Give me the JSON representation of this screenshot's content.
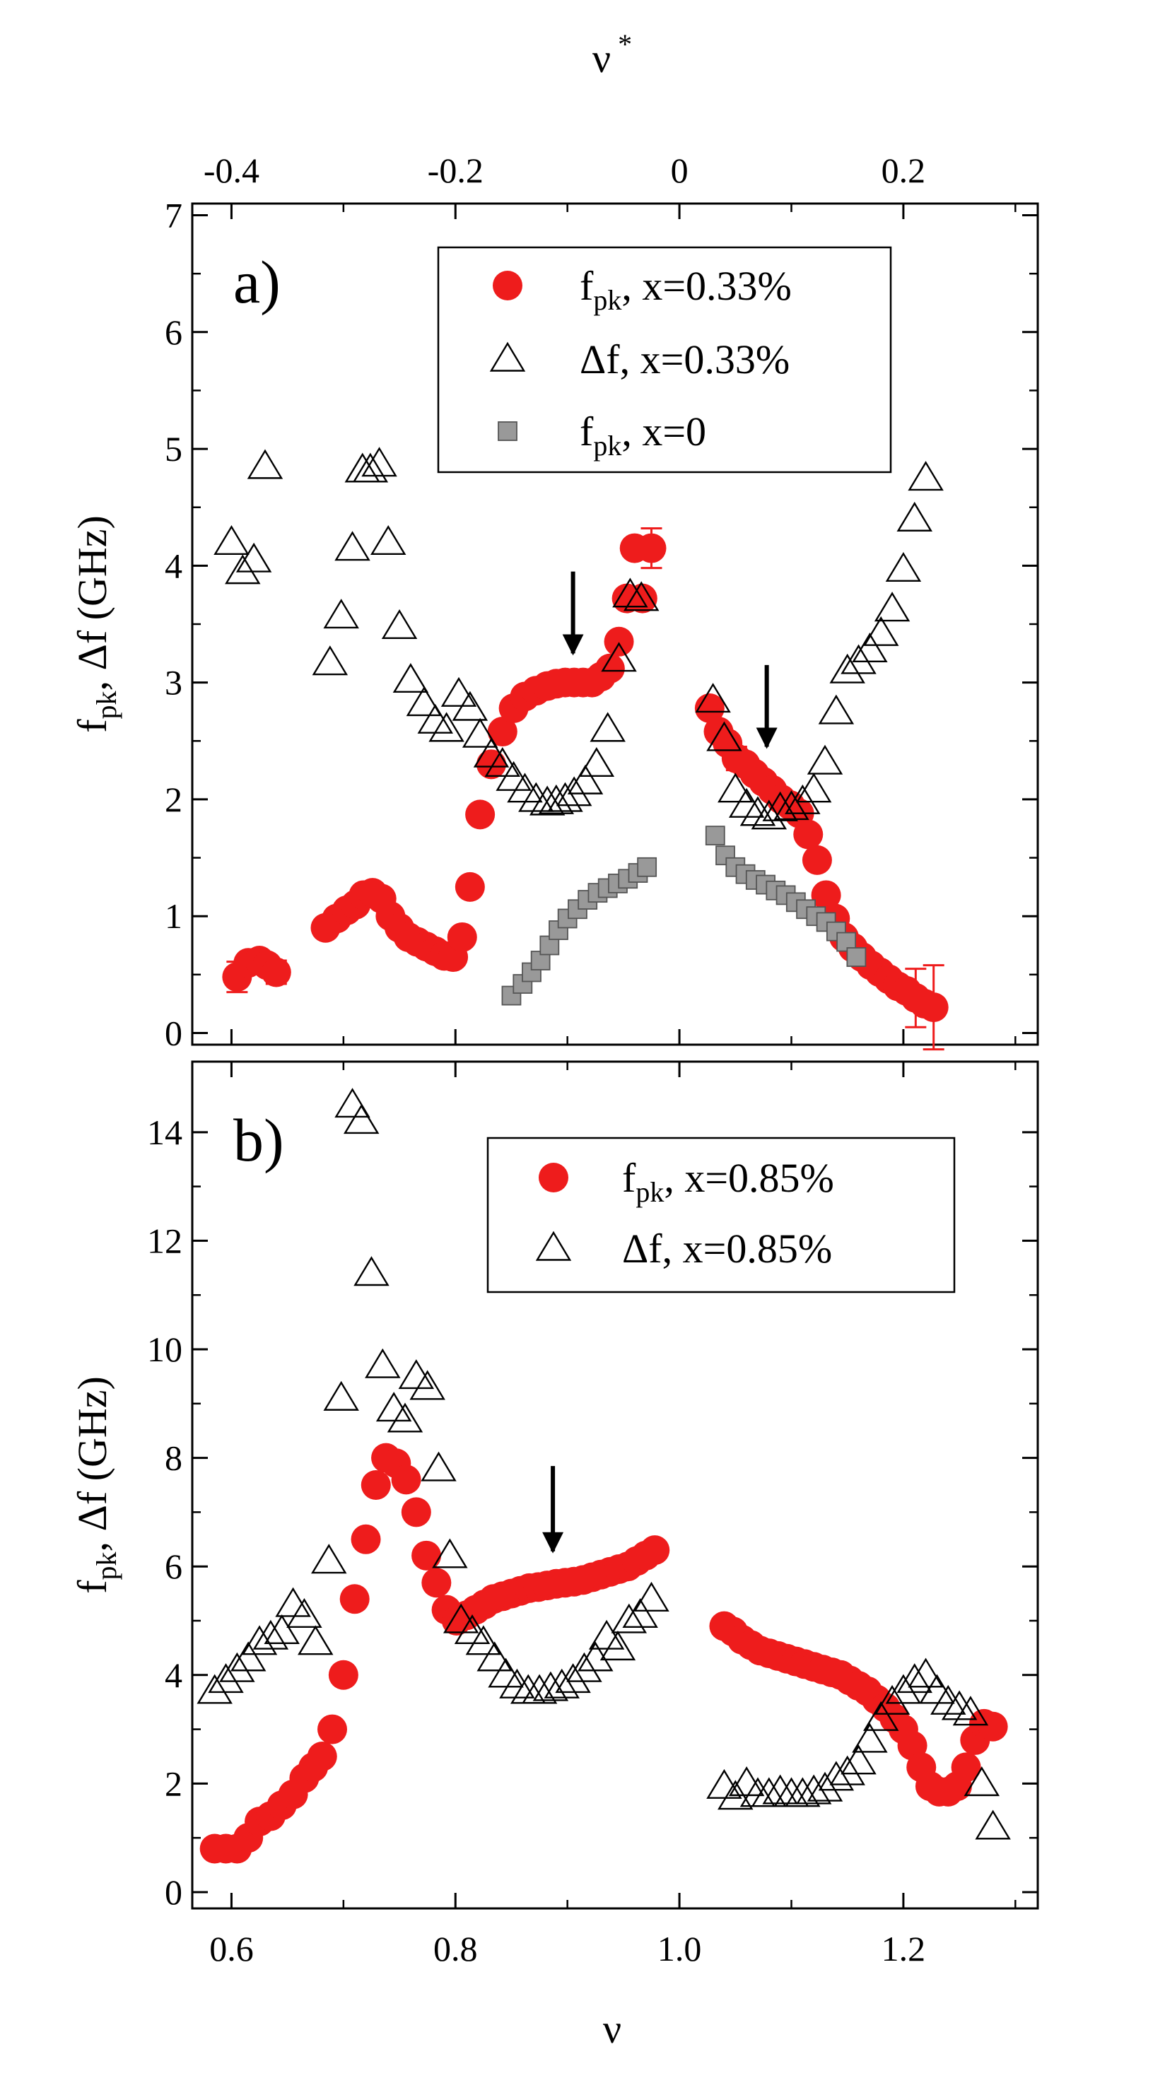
{
  "chart_data": [
    {
      "panel": "a)",
      "type": "scatter",
      "xlabel": "ν",
      "ylabel": "f_pk, Δf (GHz)",
      "ylabel_parts": {
        "f": "f",
        "sub": "pk",
        "rest": ",  Δf  (GHz)"
      },
      "top_axis": {
        "label": "ν*",
        "label_parts": {
          "nu": "ν",
          "sup": "*"
        },
        "ticks": [
          -0.4,
          -0.2,
          0,
          0.2
        ],
        "tick_labels": [
          "-0.4",
          "-0.2",
          "0",
          "0.2"
        ]
      },
      "xlim": [
        0.565,
        1.32
      ],
      "ylim": [
        -0.1,
        7.1
      ],
      "yticks": [
        0,
        1,
        2,
        3,
        4,
        5,
        6,
        7
      ],
      "ytick_labels": [
        "0",
        "1",
        "2",
        "3",
        "4",
        "5",
        "6",
        "7"
      ],
      "arrows": [
        {
          "x": 0.905,
          "y_tip": 3.25,
          "y_tail": 3.95
        },
        {
          "x": 1.078,
          "y_tip": 2.45,
          "y_tail": 3.15
        }
      ],
      "legend": {
        "position": "top-right",
        "entries": [
          {
            "marker": "circle",
            "f": "f",
            "sub": "pk",
            "rest": ",  x=0.33%"
          },
          {
            "marker": "triangle",
            "f": "Δf",
            "sub": "",
            "rest": ",  x=0.33%"
          },
          {
            "marker": "square",
            "f": "f",
            "sub": "pk",
            "rest": ", x=0"
          }
        ]
      },
      "series": [
        {
          "name": "f_pk, x=0.33%",
          "marker": "circle",
          "color": "#ee1c1c",
          "x": [
            0.605,
            0.615,
            0.625,
            0.632,
            0.64,
            0.684,
            0.694,
            0.703,
            0.711,
            0.718,
            0.726,
            0.734,
            0.742,
            0.75,
            0.758,
            0.766,
            0.774,
            0.782,
            0.79,
            0.798,
            0.806,
            0.813,
            0.822,
            0.832,
            0.842,
            0.852,
            0.862,
            0.872,
            0.882,
            0.89,
            0.898,
            0.906,
            0.914,
            0.922,
            0.93,
            0.938,
            0.946,
            0.953,
            0.96,
            0.967,
            0.975,
            1.027,
            1.035,
            1.043,
            1.051,
            1.059,
            1.067,
            1.075,
            1.083,
            1.091,
            1.099,
            1.107,
            1.115,
            1.123,
            1.131,
            1.139,
            1.147,
            1.155,
            1.163,
            1.171,
            1.179,
            1.187,
            1.195,
            1.203,
            1.211,
            1.219,
            1.227
          ],
          "y": [
            0.48,
            0.6,
            0.62,
            0.58,
            0.52,
            0.9,
            0.98,
            1.05,
            1.1,
            1.18,
            1.2,
            1.15,
            1.0,
            0.9,
            0.82,
            0.78,
            0.74,
            0.7,
            0.66,
            0.65,
            0.82,
            1.25,
            1.87,
            2.3,
            2.58,
            2.78,
            2.88,
            2.93,
            2.97,
            2.99,
            3.0,
            3.0,
            3.0,
            3.0,
            3.05,
            3.12,
            3.35,
            3.72,
            4.15,
            3.72,
            4.15,
            2.78,
            2.58,
            2.48,
            2.35,
            2.3,
            2.22,
            2.15,
            2.08,
            2.0,
            1.95,
            1.88,
            1.7,
            1.48,
            1.18,
            0.98,
            0.82,
            0.73,
            0.65,
            0.58,
            0.52,
            0.46,
            0.4,
            0.36,
            0.3,
            0.25,
            0.22
          ],
          "error_bars": [
            {
              "x": 0.605,
              "y": 0.48,
              "err": 0.13
            },
            {
              "x": 0.64,
              "y": 0.52,
              "err": 0.1
            },
            {
              "x": 0.975,
              "y": 4.15,
              "err": 0.17
            },
            {
              "x": 1.027,
              "y": 2.78,
              "err": 0.08
            },
            {
              "x": 1.051,
              "y": 2.35,
              "err": 0.1
            },
            {
              "x": 1.211,
              "y": 0.3,
              "err": 0.25
            },
            {
              "x": 1.227,
              "y": 0.22,
              "err": 0.36
            }
          ]
        },
        {
          "name": "Δf, x=0.33%",
          "marker": "triangle",
          "color": "#000000",
          "x": [
            0.6,
            0.61,
            0.62,
            0.63,
            0.688,
            0.698,
            0.708,
            0.717,
            0.724,
            0.732,
            0.74,
            0.75,
            0.76,
            0.772,
            0.782,
            0.792,
            0.803,
            0.813,
            0.822,
            0.832,
            0.842,
            0.852,
            0.862,
            0.872,
            0.882,
            0.89,
            0.898,
            0.906,
            0.916,
            0.926,
            0.936,
            0.946,
            0.956,
            0.966,
            1.03,
            1.04,
            1.05,
            1.06,
            1.07,
            1.08,
            1.09,
            1.1,
            1.11,
            1.12,
            1.13,
            1.14,
            1.15,
            1.16,
            1.17,
            1.18,
            1.19,
            1.2,
            1.21,
            1.22
          ],
          "y": [
            4.2,
            3.95,
            4.05,
            4.85,
            3.17,
            3.57,
            4.15,
            4.82,
            4.82,
            4.87,
            4.2,
            3.48,
            3.02,
            2.82,
            2.67,
            2.6,
            2.9,
            2.78,
            2.55,
            2.38,
            2.3,
            2.18,
            2.08,
            2.0,
            1.97,
            1.98,
            2.0,
            2.05,
            2.15,
            2.3,
            2.6,
            3.2,
            3.75,
            3.72,
            2.85,
            2.52,
            2.08,
            1.95,
            1.88,
            1.85,
            1.92,
            1.93,
            1.98,
            2.08,
            2.32,
            2.75,
            3.1,
            3.18,
            3.28,
            3.42,
            3.63,
            3.97,
            4.4,
            4.75
          ]
        },
        {
          "name": "f_pk, x=0",
          "marker": "square",
          "color": "#999999",
          "x": [
            0.85,
            0.86,
            0.868,
            0.876,
            0.884,
            0.892,
            0.9,
            0.909,
            0.918,
            0.927,
            0.936,
            0.945,
            0.954,
            0.963,
            0.971,
            1.032,
            1.041,
            1.05,
            1.059,
            1.068,
            1.077,
            1.086,
            1.095,
            1.104,
            1.113,
            1.122,
            1.131,
            1.14,
            1.149,
            1.158
          ],
          "y": [
            0.32,
            0.42,
            0.52,
            0.62,
            0.75,
            0.88,
            0.98,
            1.06,
            1.14,
            1.2,
            1.24,
            1.28,
            1.32,
            1.37,
            1.42,
            1.69,
            1.52,
            1.42,
            1.36,
            1.31,
            1.27,
            1.22,
            1.18,
            1.12,
            1.06,
            1.0,
            0.95,
            0.87,
            0.78,
            0.65
          ]
        }
      ]
    },
    {
      "panel": "b)",
      "type": "scatter",
      "xlabel": "ν",
      "xlabel_text": "ν",
      "ylabel": "f_pk, Δf (GHz)",
      "ylabel_parts": {
        "f": "f",
        "sub": "pk",
        "rest": ",  Δf  (GHz)"
      },
      "xlim": [
        0.565,
        1.32
      ],
      "xticks": [
        0.6,
        0.8,
        1.0,
        1.2
      ],
      "xtick_labels": [
        "0.6",
        "0.8",
        "1.0",
        "1.2"
      ],
      "ylim": [
        -0.3,
        15.3
      ],
      "yticks": [
        0,
        2,
        4,
        6,
        8,
        10,
        12,
        14
      ],
      "ytick_labels": [
        "0",
        "2",
        "4",
        "6",
        "8",
        "10",
        "12",
        "14"
      ],
      "arrows": [
        {
          "x": 0.887,
          "y_tip": 6.28,
          "y_tail": 7.85
        }
      ],
      "legend": {
        "position": "top-right",
        "entries": [
          {
            "marker": "circle",
            "f": "f",
            "sub": "pk",
            "rest": ",  x=0.85%"
          },
          {
            "marker": "triangle",
            "f": "Δf",
            "sub": "",
            "rest": ",  x=0.85%"
          }
        ]
      },
      "series": [
        {
          "name": "f_pk, x=0.85%",
          "marker": "circle",
          "color": "#ee1c1c",
          "x": [
            0.585,
            0.595,
            0.605,
            0.615,
            0.625,
            0.635,
            0.645,
            0.655,
            0.665,
            0.673,
            0.681,
            0.69,
            0.7,
            0.71,
            0.72,
            0.729,
            0.738,
            0.747,
            0.756,
            0.765,
            0.774,
            0.783,
            0.792,
            0.801,
            0.81,
            0.818,
            0.826,
            0.834,
            0.842,
            0.85,
            0.858,
            0.866,
            0.874,
            0.882,
            0.89,
            0.898,
            0.906,
            0.914,
            0.922,
            0.93,
            0.938,
            0.946,
            0.954,
            0.962,
            0.97,
            0.978,
            1.04,
            1.048,
            1.056,
            1.064,
            1.072,
            1.08,
            1.088,
            1.096,
            1.104,
            1.112,
            1.12,
            1.128,
            1.136,
            1.144,
            1.152,
            1.16,
            1.168,
            1.176,
            1.184,
            1.192,
            1.2,
            1.208,
            1.216,
            1.224,
            1.232,
            1.24,
            1.248,
            1.256,
            1.264,
            1.272,
            1.28
          ],
          "y": [
            0.8,
            0.8,
            0.8,
            1.0,
            1.3,
            1.4,
            1.6,
            1.8,
            2.1,
            2.3,
            2.5,
            3.0,
            4.0,
            5.4,
            6.5,
            7.5,
            8.0,
            7.9,
            7.6,
            7.0,
            6.2,
            5.7,
            5.2,
            5.0,
            5.1,
            5.2,
            5.3,
            5.4,
            5.45,
            5.5,
            5.55,
            5.6,
            5.62,
            5.65,
            5.68,
            5.7,
            5.72,
            5.75,
            5.8,
            5.85,
            5.9,
            5.95,
            6.0,
            6.1,
            6.2,
            6.3,
            4.9,
            4.8,
            4.65,
            4.55,
            4.45,
            4.4,
            4.35,
            4.3,
            4.25,
            4.2,
            4.15,
            4.1,
            4.05,
            4.0,
            3.9,
            3.8,
            3.7,
            3.55,
            3.4,
            3.2,
            3.0,
            2.7,
            2.3,
            1.95,
            1.85,
            1.85,
            1.95,
            2.3,
            2.8,
            3.1,
            3.05
          ]
        },
        {
          "name": "Δf, x=0.85%",
          "marker": "triangle",
          "color": "#000000",
          "x": [
            0.585,
            0.595,
            0.605,
            0.615,
            0.625,
            0.635,
            0.645,
            0.655,
            0.665,
            0.675,
            0.687,
            0.698,
            0.708,
            0.716,
            0.725,
            0.735,
            0.745,
            0.755,
            0.765,
            0.775,
            0.785,
            0.795,
            0.805,
            0.815,
            0.825,
            0.835,
            0.845,
            0.855,
            0.865,
            0.875,
            0.885,
            0.895,
            0.905,
            0.915,
            0.925,
            0.935,
            0.945,
            0.955,
            0.965,
            0.975,
            1.04,
            1.05,
            1.06,
            1.07,
            1.08,
            1.09,
            1.1,
            1.11,
            1.12,
            1.13,
            1.14,
            1.15,
            1.16,
            1.17,
            1.18,
            1.19,
            1.2,
            1.21,
            1.22,
            1.23,
            1.24,
            1.25,
            1.26,
            1.27,
            1.28
          ],
          "y": [
            3.7,
            3.9,
            4.1,
            4.3,
            4.6,
            4.7,
            4.8,
            5.3,
            5.1,
            4.6,
            6.1,
            9.1,
            14.5,
            14.2,
            11.4,
            9.7,
            8.9,
            8.7,
            9.5,
            9.3,
            7.8,
            6.2,
            5.0,
            4.8,
            4.6,
            4.3,
            4.0,
            3.8,
            3.7,
            3.7,
            3.75,
            3.8,
            3.9,
            4.1,
            4.3,
            4.7,
            4.5,
            5.0,
            5.1,
            5.4,
            1.95,
            1.75,
            2.0,
            1.8,
            1.8,
            1.85,
            1.8,
            1.8,
            1.85,
            1.9,
            2.1,
            2.2,
            2.4,
            2.8,
            3.2,
            3.5,
            3.7,
            3.9,
            4.0,
            3.7,
            3.5,
            3.4,
            3.3,
            2.0,
            1.2
          ]
        }
      ]
    }
  ]
}
